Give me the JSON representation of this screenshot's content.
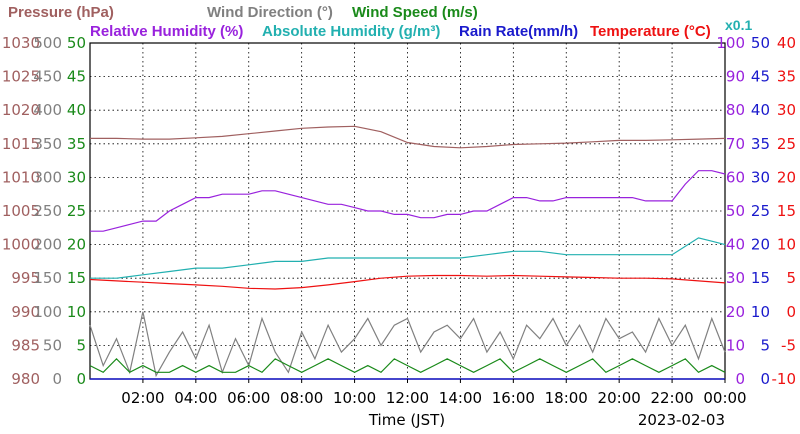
{
  "chart_data": {
    "type": "line",
    "date": "2023-02-03",
    "xlabel": "Time (JST)",
    "x_ticks": [
      "02:00",
      "04:00",
      "06:00",
      "08:00",
      "10:00",
      "12:00",
      "14:00",
      "16:00",
      "18:00",
      "20:00",
      "22:00",
      "00:00"
    ],
    "x_range_hours": [
      0,
      24
    ],
    "grid": true,
    "header": {
      "line1": [
        {
          "text": "Pressure (hPa)",
          "color": "#a06060"
        },
        {
          "text": "Wind Direction (°)",
          "color": "#808080"
        },
        {
          "text": "Wind Speed (m/s)",
          "color": "#1a8a1a"
        }
      ],
      "line2": [
        {
          "text": "Relative Humidity (%)",
          "color": "#9922dd"
        },
        {
          "text": "Absolute Humidity (g/m³)",
          "color": "#22b0b0"
        },
        {
          "text": "Rain Rate(mm/h)",
          "color": "#1a1acc"
        },
        {
          "text": "Temperature (°C)",
          "color": "#ee1111"
        }
      ],
      "note": {
        "text": "x0.1",
        "color": "#22b0b0"
      }
    },
    "axes": {
      "pressure": {
        "color": "#a06060",
        "ticks": [
          "980",
          "985",
          "990",
          "995",
          "1000",
          "1005",
          "1010",
          "1015",
          "1020",
          "1025",
          "1030"
        ],
        "range": [
          980,
          1030
        ]
      },
      "wind_direction": {
        "color": "#808080",
        "ticks": [
          "0",
          "50",
          "100",
          "150",
          "200",
          "250",
          "300",
          "350",
          "400",
          "450",
          "500"
        ],
        "range": [
          0,
          500
        ]
      },
      "wind_speed": {
        "color": "#1a8a1a",
        "ticks": [
          "0",
          "5",
          "10",
          "15",
          "20",
          "25",
          "30",
          "35",
          "40",
          "45",
          "50"
        ],
        "range": [
          0,
          50
        ]
      },
      "humidity": {
        "color": "#9922dd",
        "ticks": [
          "0",
          "10",
          "20",
          "30",
          "40",
          "50",
          "60",
          "70",
          "80",
          "90",
          "100"
        ],
        "range": [
          0,
          100
        ]
      },
      "rain_rate": {
        "color": "#1a1acc",
        "ticks": [
          "0",
          "5",
          "10",
          "15",
          "20",
          "25",
          "30",
          "35",
          "40",
          "45",
          "50"
        ],
        "range": [
          0,
          50
        ]
      },
      "temperature": {
        "color": "#ee1111",
        "ticks": [
          "-10",
          "-5",
          "0",
          "5",
          "10",
          "15",
          "20",
          "25",
          "30",
          "35",
          "40"
        ],
        "range": [
          -10,
          40
        ]
      }
    },
    "series": [
      {
        "name": "Pressure (hPa)",
        "axis": "pressure",
        "color": "#a06060",
        "x": [
          0,
          1,
          2,
          3,
          4,
          5,
          6,
          7,
          8,
          9,
          10,
          11,
          12,
          13,
          14,
          15,
          16,
          17,
          18,
          19,
          20,
          21,
          22,
          23,
          24
        ],
        "y": [
          1015.8,
          1015.8,
          1015.7,
          1015.7,
          1015.9,
          1016.1,
          1016.5,
          1016.9,
          1017.3,
          1017.5,
          1017.6,
          1016.8,
          1015.2,
          1014.6,
          1014.4,
          1014.6,
          1014.9,
          1015.0,
          1015.1,
          1015.3,
          1015.5,
          1015.5,
          1015.6,
          1015.7,
          1015.8
        ]
      },
      {
        "name": "Relative Humidity (%)",
        "axis": "humidity",
        "color": "#9922dd",
        "x": [
          0,
          0.5,
          1,
          1.5,
          2,
          2.5,
          3,
          3.5,
          4,
          4.5,
          5,
          5.5,
          6,
          6.5,
          7,
          7.5,
          8,
          8.5,
          9,
          9.5,
          10,
          10.5,
          11,
          11.5,
          12,
          12.5,
          13,
          13.5,
          14,
          14.5,
          15,
          15.5,
          16,
          16.5,
          17,
          17.5,
          18,
          18.5,
          19,
          19.5,
          20,
          20.5,
          21,
          21.5,
          22,
          22.5,
          23,
          23.5,
          24
        ],
        "y": [
          44,
          44,
          45,
          46,
          47,
          47,
          50,
          52,
          54,
          54,
          55,
          55,
          55,
          56,
          56,
          55,
          54,
          53,
          52,
          52,
          51,
          50,
          50,
          49,
          49,
          48,
          48,
          49,
          49,
          50,
          50,
          52,
          54,
          54,
          53,
          53,
          54,
          54,
          54,
          54,
          54,
          54,
          53,
          53,
          53,
          58,
          62,
          62,
          61
        ]
      },
      {
        "name": "Absolute Humidity (g/m³)",
        "axis": "humidity",
        "color": "#22b0b0",
        "x": [
          0,
          1,
          2,
          3,
          4,
          5,
          6,
          7,
          8,
          9,
          10,
          11,
          12,
          13,
          14,
          15,
          16,
          17,
          18,
          19,
          20,
          21,
          22,
          23,
          23.5,
          24
        ],
        "y": [
          30,
          30,
          31,
          32,
          33,
          33,
          34,
          35,
          35,
          36,
          36,
          36,
          36,
          36,
          36,
          37,
          38,
          38,
          37,
          37,
          37,
          37,
          37,
          42,
          41,
          40
        ]
      },
      {
        "name": "Temperature (°C)",
        "axis": "temperature",
        "color": "#ee1111",
        "x": [
          0,
          1,
          2,
          3,
          4,
          5,
          6,
          7,
          8,
          9,
          10,
          11,
          12,
          13,
          14,
          15,
          16,
          17,
          18,
          19,
          20,
          21,
          22,
          23,
          24
        ],
        "y": [
          4.8,
          4.6,
          4.4,
          4.2,
          4.0,
          3.8,
          3.5,
          3.4,
          3.6,
          4.0,
          4.5,
          5.0,
          5.3,
          5.4,
          5.4,
          5.3,
          5.4,
          5.3,
          5.2,
          5.1,
          5.0,
          5.0,
          4.9,
          4.6,
          4.3
        ]
      },
      {
        "name": "Wind Direction (°)",
        "axis": "wind_direction",
        "color": "#808080",
        "x": [
          0,
          0.5,
          1,
          1.5,
          2,
          2.5,
          3,
          3.5,
          4,
          4.5,
          5,
          5.5,
          6,
          6.5,
          7,
          7.5,
          8,
          8.5,
          9,
          9.5,
          10,
          10.5,
          11,
          11.5,
          12,
          12.5,
          13,
          13.5,
          14,
          14.5,
          15,
          15.5,
          16,
          16.5,
          17,
          17.5,
          18,
          18.5,
          19,
          19.5,
          20,
          20.5,
          21,
          21.5,
          22,
          22.5,
          23,
          23.5,
          24
        ],
        "y": [
          80,
          20,
          60,
          10,
          100,
          5,
          40,
          70,
          30,
          80,
          10,
          60,
          20,
          90,
          40,
          10,
          70,
          30,
          80,
          40,
          60,
          90,
          50,
          80,
          90,
          40,
          70,
          80,
          60,
          90,
          40,
          70,
          30,
          80,
          60,
          90,
          50,
          80,
          40,
          90,
          60,
          70,
          40,
          90,
          50,
          80,
          30,
          90,
          40
        ]
      },
      {
        "name": "Wind Speed (m/s)",
        "axis": "wind_speed",
        "color": "#1a8a1a",
        "x": [
          0,
          0.5,
          1,
          1.5,
          2,
          2.5,
          3,
          3.5,
          4,
          4.5,
          5,
          5.5,
          6,
          6.5,
          7,
          7.5,
          8,
          8.5,
          9,
          9.5,
          10,
          10.5,
          11,
          11.5,
          12,
          12.5,
          13,
          13.5,
          14,
          14.5,
          15,
          15.5,
          16,
          16.5,
          17,
          17.5,
          18,
          18.5,
          19,
          19.5,
          20,
          20.5,
          21,
          21.5,
          22,
          22.5,
          23,
          23.5,
          24
        ],
        "y": [
          2,
          1,
          3,
          1,
          2,
          1,
          1,
          2,
          1,
          2,
          1,
          1,
          2,
          1,
          3,
          2,
          1,
          2,
          3,
          2,
          1,
          2,
          1,
          3,
          2,
          1,
          2,
          3,
          2,
          1,
          2,
          3,
          1,
          2,
          3,
          2,
          1,
          2,
          3,
          1,
          2,
          3,
          2,
          1,
          2,
          3,
          1,
          2,
          1
        ]
      }
    ]
  }
}
